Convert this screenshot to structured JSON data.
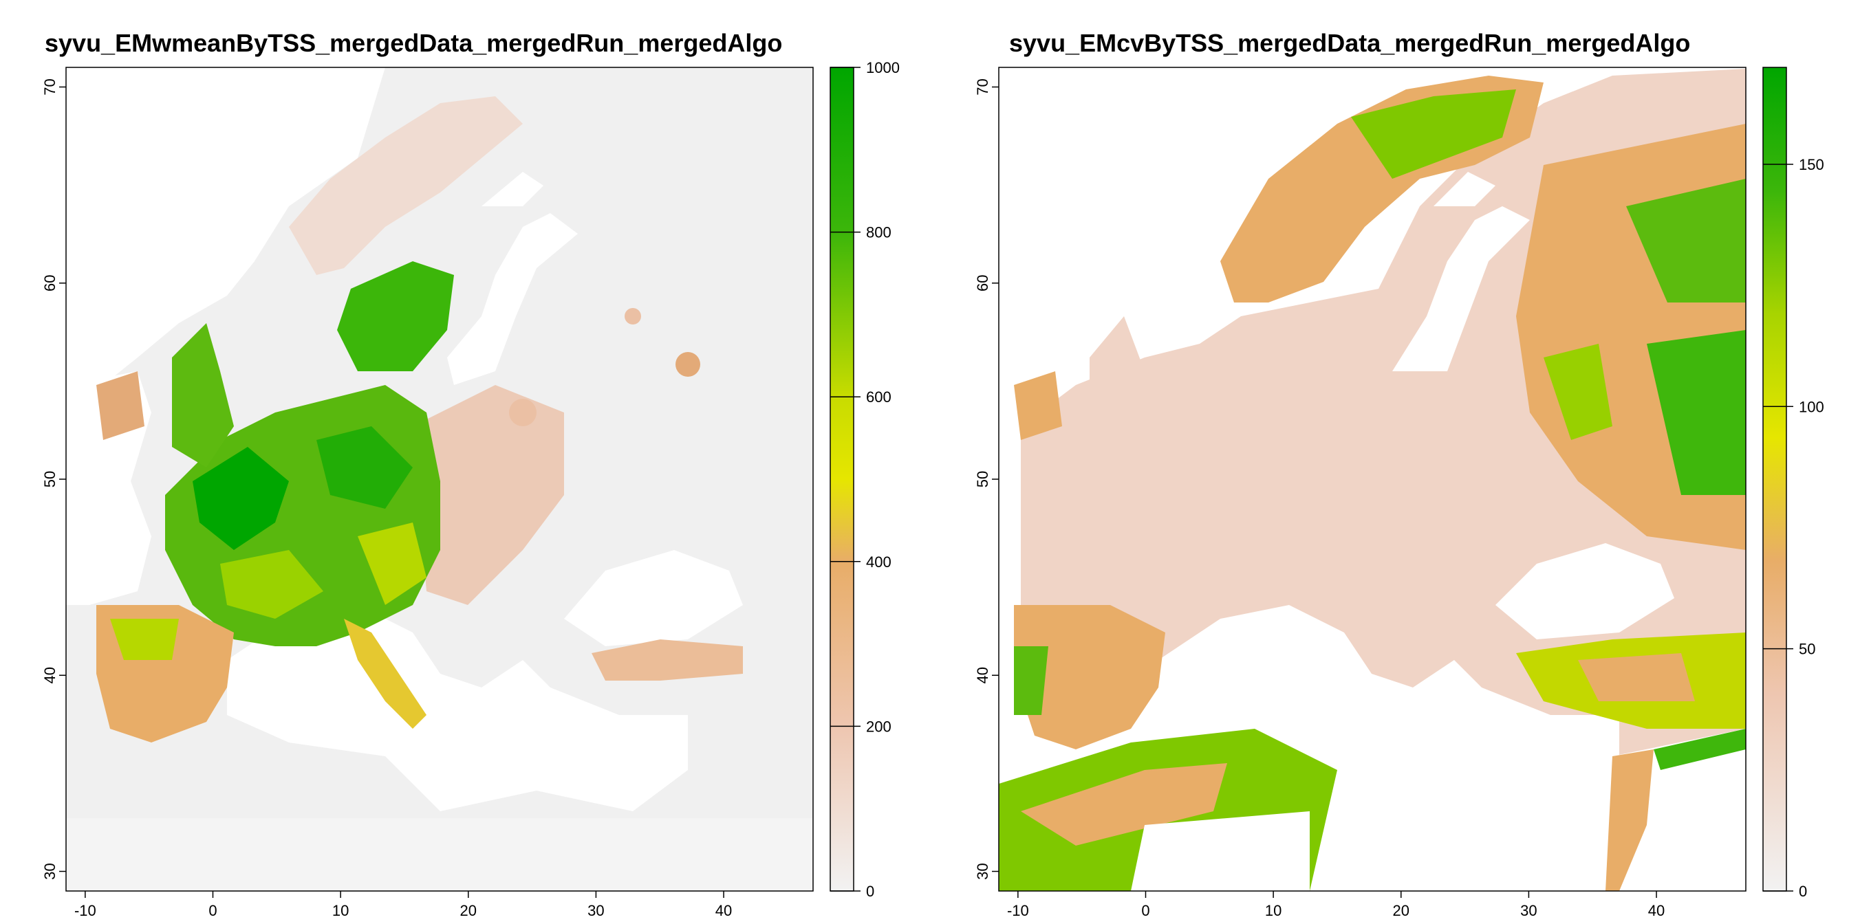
{
  "panels": [
    {
      "title": "syvu_EMwmeanByTSS_mergedData_mergedRun_mergedAlgo",
      "x_ticks": [
        "-10",
        "0",
        "10",
        "20",
        "30",
        "40"
      ],
      "y_ticks": [
        "30",
        "40",
        "50",
        "60",
        "70"
      ],
      "legend_ticks": [
        "0",
        "200",
        "400",
        "600",
        "800",
        "1000"
      ]
    },
    {
      "title": "syvu_EMcvByTSS_mergedData_mergedRun_mergedAlgo",
      "x_ticks": [
        "-10",
        "0",
        "10",
        "20",
        "30",
        "40"
      ],
      "y_ticks": [
        "30",
        "40",
        "50",
        "60",
        "70"
      ],
      "legend_ticks": [
        "0",
        "50",
        "100",
        "150"
      ]
    }
  ],
  "chart_data": [
    {
      "type": "heatmap",
      "title": "syvu_EMwmeanByTSS_mergedData_mergedRun_mergedAlgo",
      "xlim": [
        -11.5,
        47
      ],
      "ylim": [
        29,
        71
      ],
      "color_range": [
        0,
        1000
      ],
      "colors": [
        "#f2f2f2",
        "#eec6b0",
        "#e8ad68",
        "#e5c830",
        "#e6e600",
        "#8fcf00",
        "#3cb60a",
        "#00a600"
      ]
    },
    {
      "type": "heatmap",
      "title": "syvu_EMcvByTSS_mergedData_mergedRun_mergedAlgo",
      "xlim": [
        -11.5,
        47
      ],
      "ylim": [
        29,
        71
      ],
      "color_range": [
        0,
        170
      ],
      "colors": [
        "#f2f2f2",
        "#eec6b0",
        "#e8ad68",
        "#e5c830",
        "#e6e600",
        "#8fcf00",
        "#3cb60a",
        "#00a600"
      ]
    }
  ]
}
